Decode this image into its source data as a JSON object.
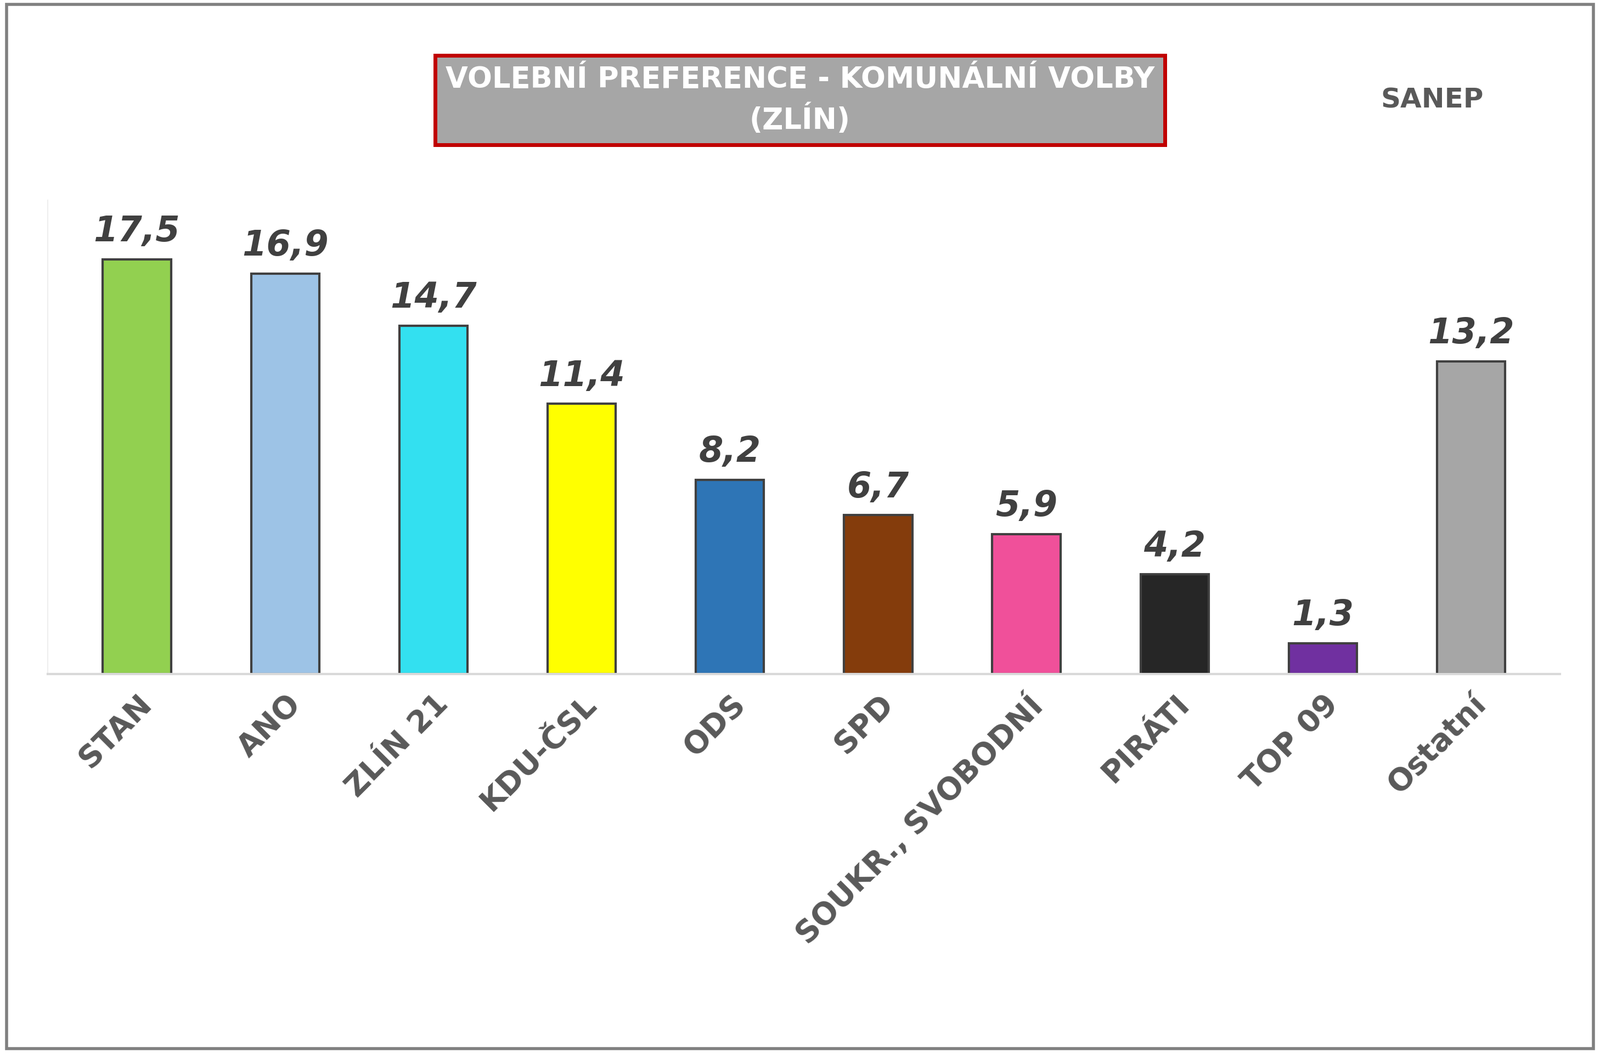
{
  "chart_data": {
    "type": "bar",
    "title": "VOLEBNÍ PREFERENCE - KOMUNÁLNÍ VOLBY\n(ZLÍN)",
    "annotations": [
      "SANEP"
    ],
    "categories": [
      "STAN",
      "ANO",
      "ZLÍN 21",
      "KDU-ČSL",
      "ODS",
      "SPD",
      "SOUKR., SVOBODNÍ",
      "PIRÁTI",
      "TOP 09",
      "Ostatní"
    ],
    "values": [
      17.5,
      16.9,
      14.7,
      11.4,
      8.2,
      6.7,
      5.9,
      4.2,
      1.3,
      13.2
    ],
    "value_labels": [
      "17,5",
      "16,9",
      "14,7",
      "11,4",
      "8,2",
      "6,7",
      "5,9",
      "4,2",
      "1,3",
      "13,2"
    ],
    "colors": [
      "#92d050",
      "#9dc3e6",
      "#33e0f0",
      "#ffff00",
      "#2e75b6",
      "#843c0c",
      "#f0509a",
      "#262626",
      "#7030a0",
      "#a6a6a6"
    ],
    "ylim": [
      0,
      20
    ],
    "yticks": [],
    "grid": false,
    "data_labels": true,
    "tick_labels": "x"
  }
}
